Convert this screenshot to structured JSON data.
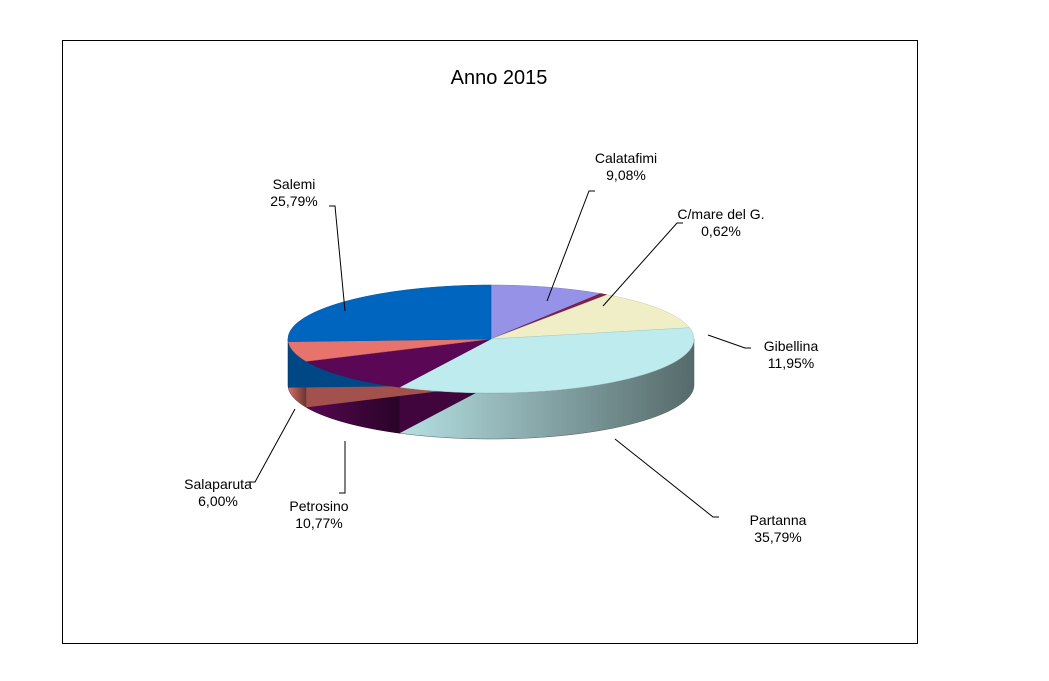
{
  "chart_data": {
    "type": "pie",
    "title": "Anno 2015",
    "slices": [
      {
        "name": "Calatafimi",
        "value": 9.08,
        "label": "9,08%",
        "color": "#9592E8"
      },
      {
        "name": "C/mare del G.",
        "value": 0.62,
        "label": "0,62%",
        "color": "#7F1F4A"
      },
      {
        "name": "Gibellina",
        "value": 11.95,
        "label": "11,95%",
        "color": "#EFEEC6"
      },
      {
        "name": "Partanna",
        "value": 35.79,
        "label": "35,79%",
        "color": "#BEECEE"
      },
      {
        "name": "Petrosino",
        "value": 10.77,
        "label": "10,77%",
        "color": "#5A0756"
      },
      {
        "name": "Salaparuta",
        "value": 6.0,
        "label": "6,00%",
        "color": "#E8736C"
      },
      {
        "name": "Salemi",
        "value": 25.79,
        "label": "25,79%",
        "color": "#0065BF"
      }
    ],
    "legend": "none",
    "style": "3d-exploded-labels"
  }
}
